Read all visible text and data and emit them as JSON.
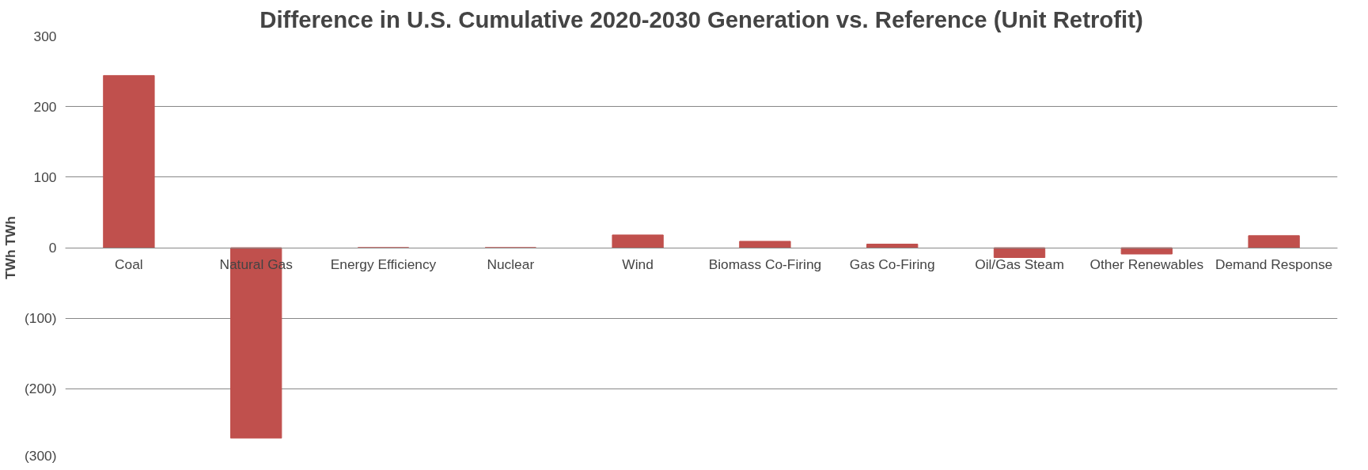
{
  "chart_data": {
    "type": "bar",
    "title": "Difference in U.S. Cumulative 2020-2030 Generation vs. Reference (Unit Retrofit)",
    "ylabel": "TWh TWh",
    "categories": [
      "Coal",
      "Natural Gas",
      "Energy Efficiency",
      "Nuclear",
      "Wind",
      "Biomass Co-Firing",
      "Gas Co-Firing",
      "Oil/Gas Steam",
      "Other Renewables",
      "Demand Response"
    ],
    "values": [
      244,
      -270,
      0,
      0,
      18,
      9,
      5,
      -14,
      -9,
      17
    ],
    "color": "#c0504d",
    "ylim": [
      -300,
      300
    ],
    "yticks": [
      {
        "value": -300,
        "label": "(300)"
      },
      {
        "value": -200,
        "label": "(200)"
      },
      {
        "value": -100,
        "label": "(100)"
      },
      0,
      100,
      200,
      300
    ],
    "grid": "y"
  }
}
